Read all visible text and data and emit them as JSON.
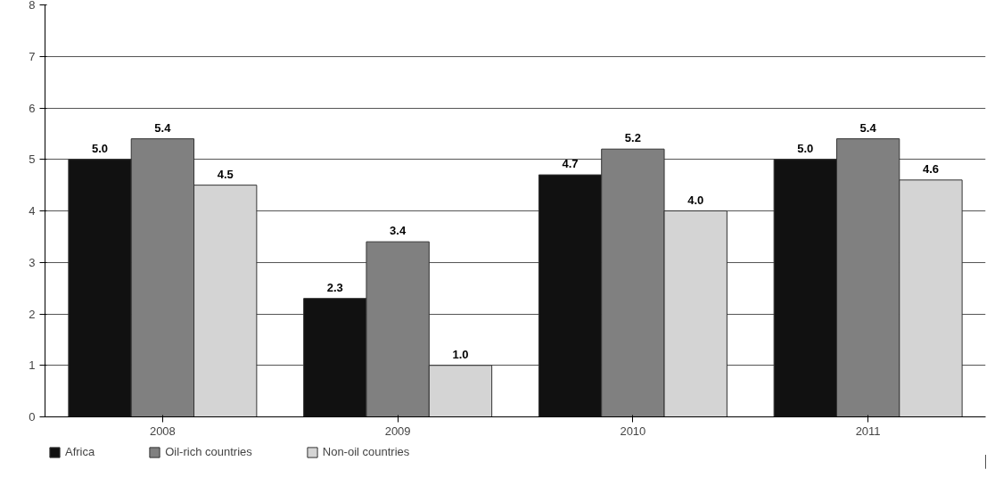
{
  "chart_data": {
    "type": "bar",
    "categories": [
      "2008",
      "2009",
      "2010",
      "2011"
    ],
    "series": [
      {
        "name": "Africa",
        "color": "#111111",
        "values": [
          5.0,
          2.3,
          4.7,
          5.0
        ],
        "value_labels": [
          "5.0",
          "2.3",
          "4.7",
          "5.0"
        ]
      },
      {
        "name": "Oil-rich countries",
        "color": "#808080",
        "values": [
          5.4,
          3.4,
          5.2,
          5.4
        ],
        "value_labels": [
          "5.4",
          "3.4",
          "5.2",
          "5.4"
        ]
      },
      {
        "name": "Non-oil countries",
        "color": "#d4d4d4",
        "values": [
          4.5,
          1.0,
          4.0,
          4.6
        ],
        "value_labels": [
          "4.5",
          "1.0",
          "4.0",
          "4.6"
        ]
      }
    ],
    "ylim": [
      0,
      8
    ],
    "yticks": [
      0,
      1,
      2,
      3,
      4,
      5,
      6,
      7,
      8
    ],
    "grid": "y",
    "legend": "bottom"
  }
}
